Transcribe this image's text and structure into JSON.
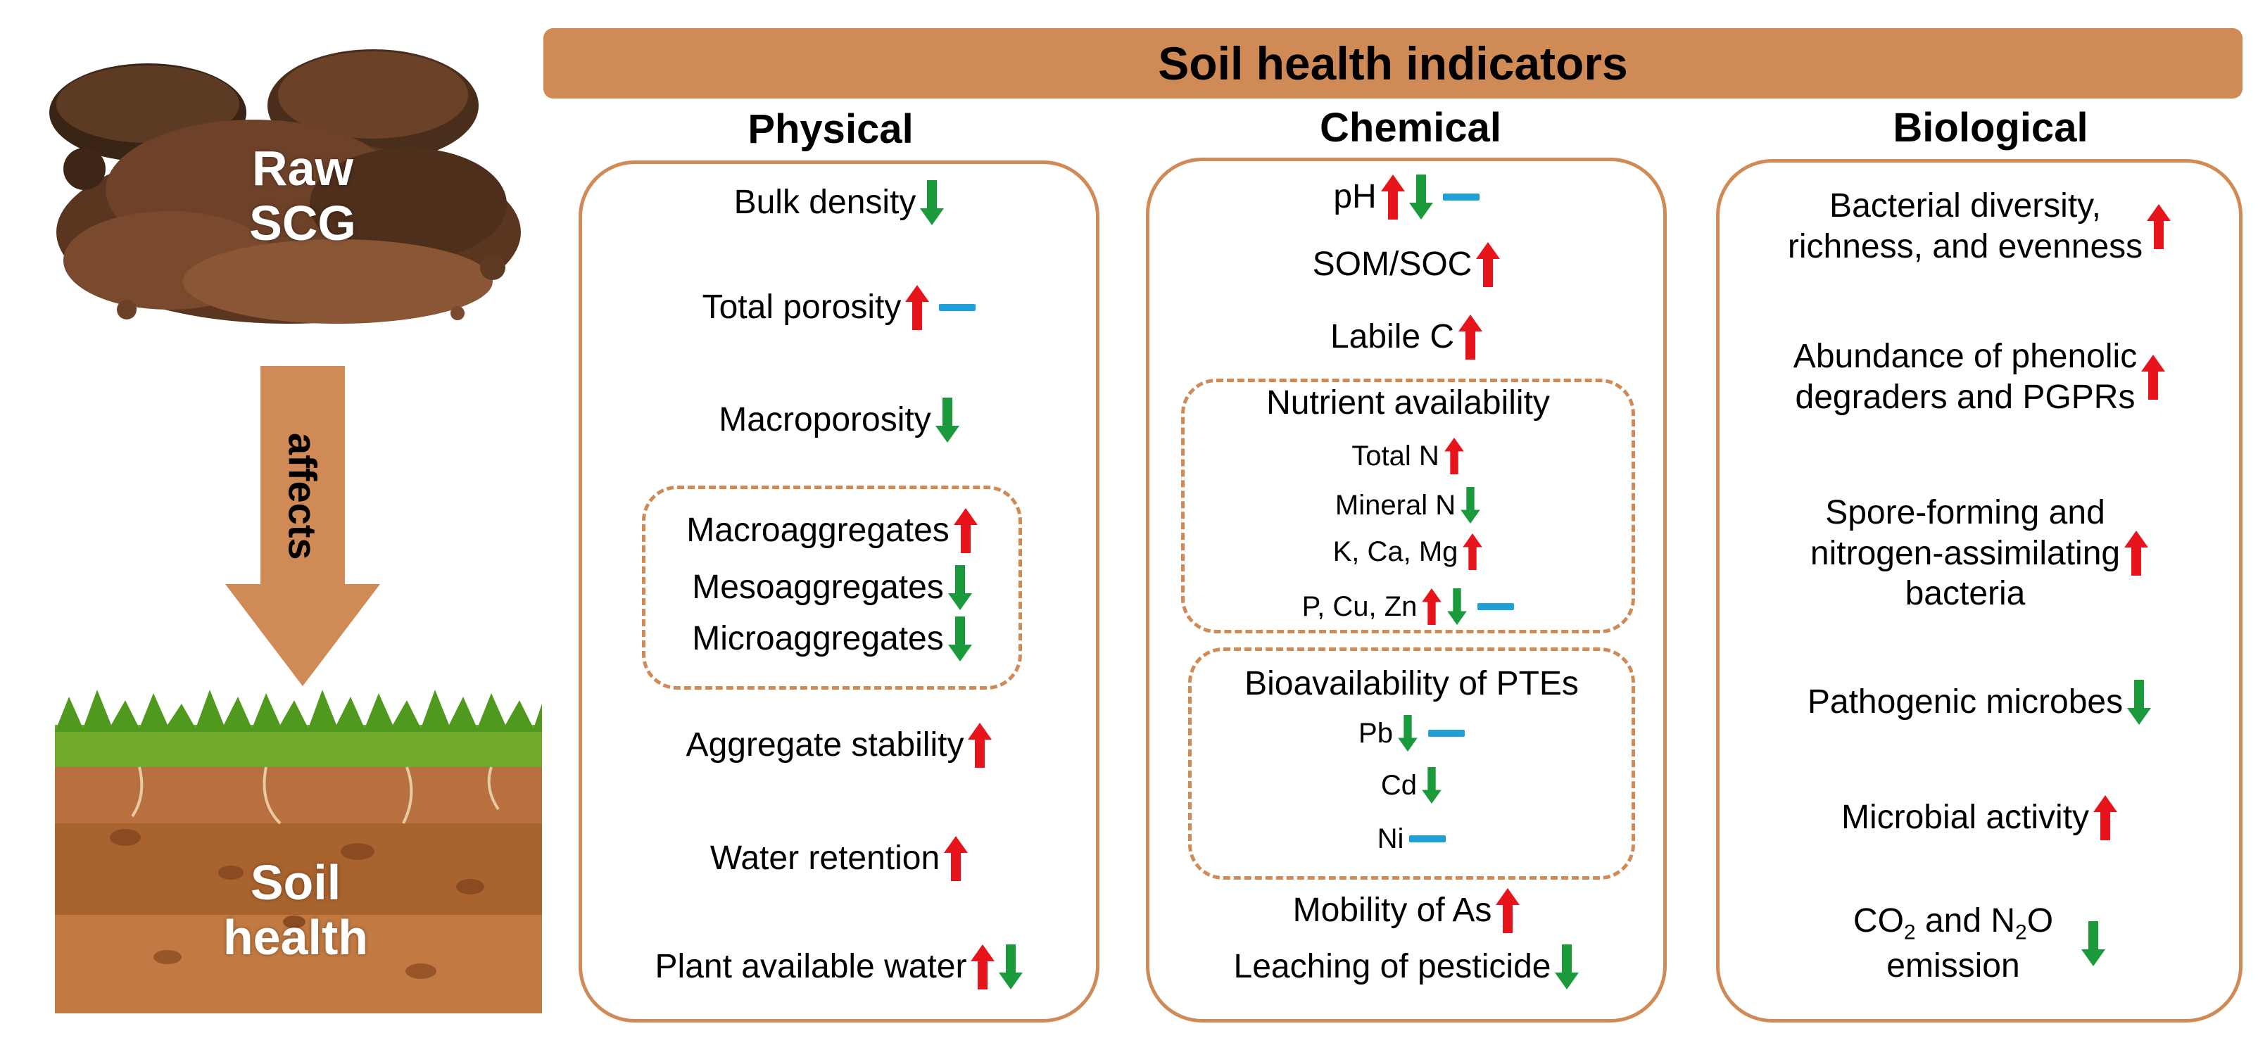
{
  "banner": {
    "title": "Soil health indicators"
  },
  "left": {
    "top_label_line1": "Raw",
    "top_label_line2": "SCG",
    "arrow_label": "affects",
    "bottom_label_line1": "Soil",
    "bottom_label_line2": "health"
  },
  "physical": {
    "heading": "Physical",
    "bulk_density": "Bulk density",
    "total_porosity": "Total porosity",
    "macroporosity": "Macroporosity",
    "macroaggregates": "Macroaggregates",
    "mesoaggregates": "Mesoaggregates",
    "microaggregates": "Microaggregates",
    "aggregate_stability": "Aggregate stability",
    "water_retention": "Water retention",
    "plant_available_water": "Plant available water"
  },
  "chemical": {
    "heading": "Chemical",
    "ph": "pH",
    "som_soc": "SOM/SOC",
    "labile_c": "Labile C",
    "nutrient_title": "Nutrient availability",
    "total_n": "Total N",
    "mineral_n": "Mineral N",
    "k_ca_mg": "K, Ca, Mg",
    "p_cu_zn": "P, Cu, Zn",
    "ptes_title": "Bioavailability of PTEs",
    "pb": "Pb",
    "cd": "Cd",
    "ni": "Ni",
    "mobility_as": "Mobility of As",
    "leaching": "Leaching of pesticide"
  },
  "biological": {
    "heading": "Biological",
    "bact_line1": "Bacterial diversity,",
    "bact_line2": "richness, and evenness",
    "phen_line1": "Abundance of phenolic",
    "phen_line2": "degraders and PGPRs",
    "spore_line1": "Spore-forming and",
    "spore_line2": "nitrogen-assimilating",
    "spore_line3": "bacteria",
    "pathogenic": "Pathogenic microbes",
    "microbial_activity": "Microbial activity",
    "co2": "CO",
    "co2_sub": "2",
    "and_n": " and N",
    "n2o_sub": "2",
    "o_emission": "O",
    "emission": "emission"
  },
  "colors": {
    "accent": "#cf8a56",
    "up": "#e8141b",
    "down": "#1a9a3a",
    "neutral": "#1fa0d8"
  }
}
